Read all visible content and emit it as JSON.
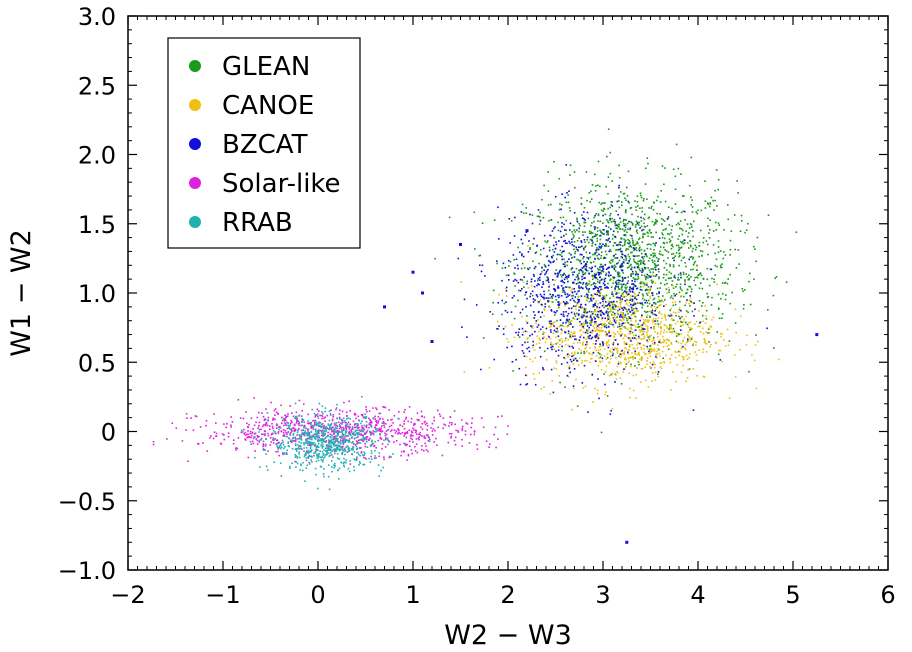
{
  "chart_data": {
    "type": "scatter",
    "xlabel": "W2 − W3",
    "ylabel": "W1 − W2",
    "xlim": [
      -2,
      6
    ],
    "ylim": [
      -1.0,
      3.0
    ],
    "xticks": [
      "−2",
      "−1",
      "0",
      "1",
      "2",
      "3",
      "4",
      "5",
      "6"
    ],
    "yticks": [
      "−1.0",
      "−0.5",
      "0",
      "0.5",
      "1.0",
      "1.5",
      "2.0",
      "2.5",
      "3.0"
    ],
    "grid": false,
    "legend_position": "top-left",
    "series": [
      {
        "name": "GLEAN",
        "color": "#1a9a1a",
        "cloud": {
          "center": [
            3.3,
            1.2
          ],
          "spread": [
            0.55,
            0.3
          ],
          "count": 1500
        }
      },
      {
        "name": "CANOE",
        "color": "#f0c010",
        "cloud": {
          "center": [
            3.2,
            0.7
          ],
          "spread": [
            0.5,
            0.18
          ],
          "count": 900
        }
      },
      {
        "name": "BZCAT",
        "color": "#1010d8",
        "cloud": {
          "center": [
            2.8,
            1.0
          ],
          "spread": [
            0.45,
            0.28
          ],
          "count": 900
        },
        "outliers": [
          [
            0.7,
            0.9
          ],
          [
            1.0,
            1.15
          ],
          [
            1.5,
            1.35
          ],
          [
            2.2,
            1.45
          ],
          [
            5.25,
            0.7
          ],
          [
            3.25,
            -0.8
          ],
          [
            1.1,
            1.0
          ],
          [
            1.2,
            0.65
          ]
        ]
      },
      {
        "name": "Solar-like",
        "color": "#e020e0",
        "cloud": {
          "center": [
            0.2,
            0.0
          ],
          "spread": [
            0.7,
            0.08
          ],
          "count": 900
        }
      },
      {
        "name": "RRAB",
        "color": "#20b0b0",
        "cloud": {
          "center": [
            0.1,
            -0.08
          ],
          "spread": [
            0.3,
            0.1
          ],
          "count": 700
        }
      }
    ]
  }
}
